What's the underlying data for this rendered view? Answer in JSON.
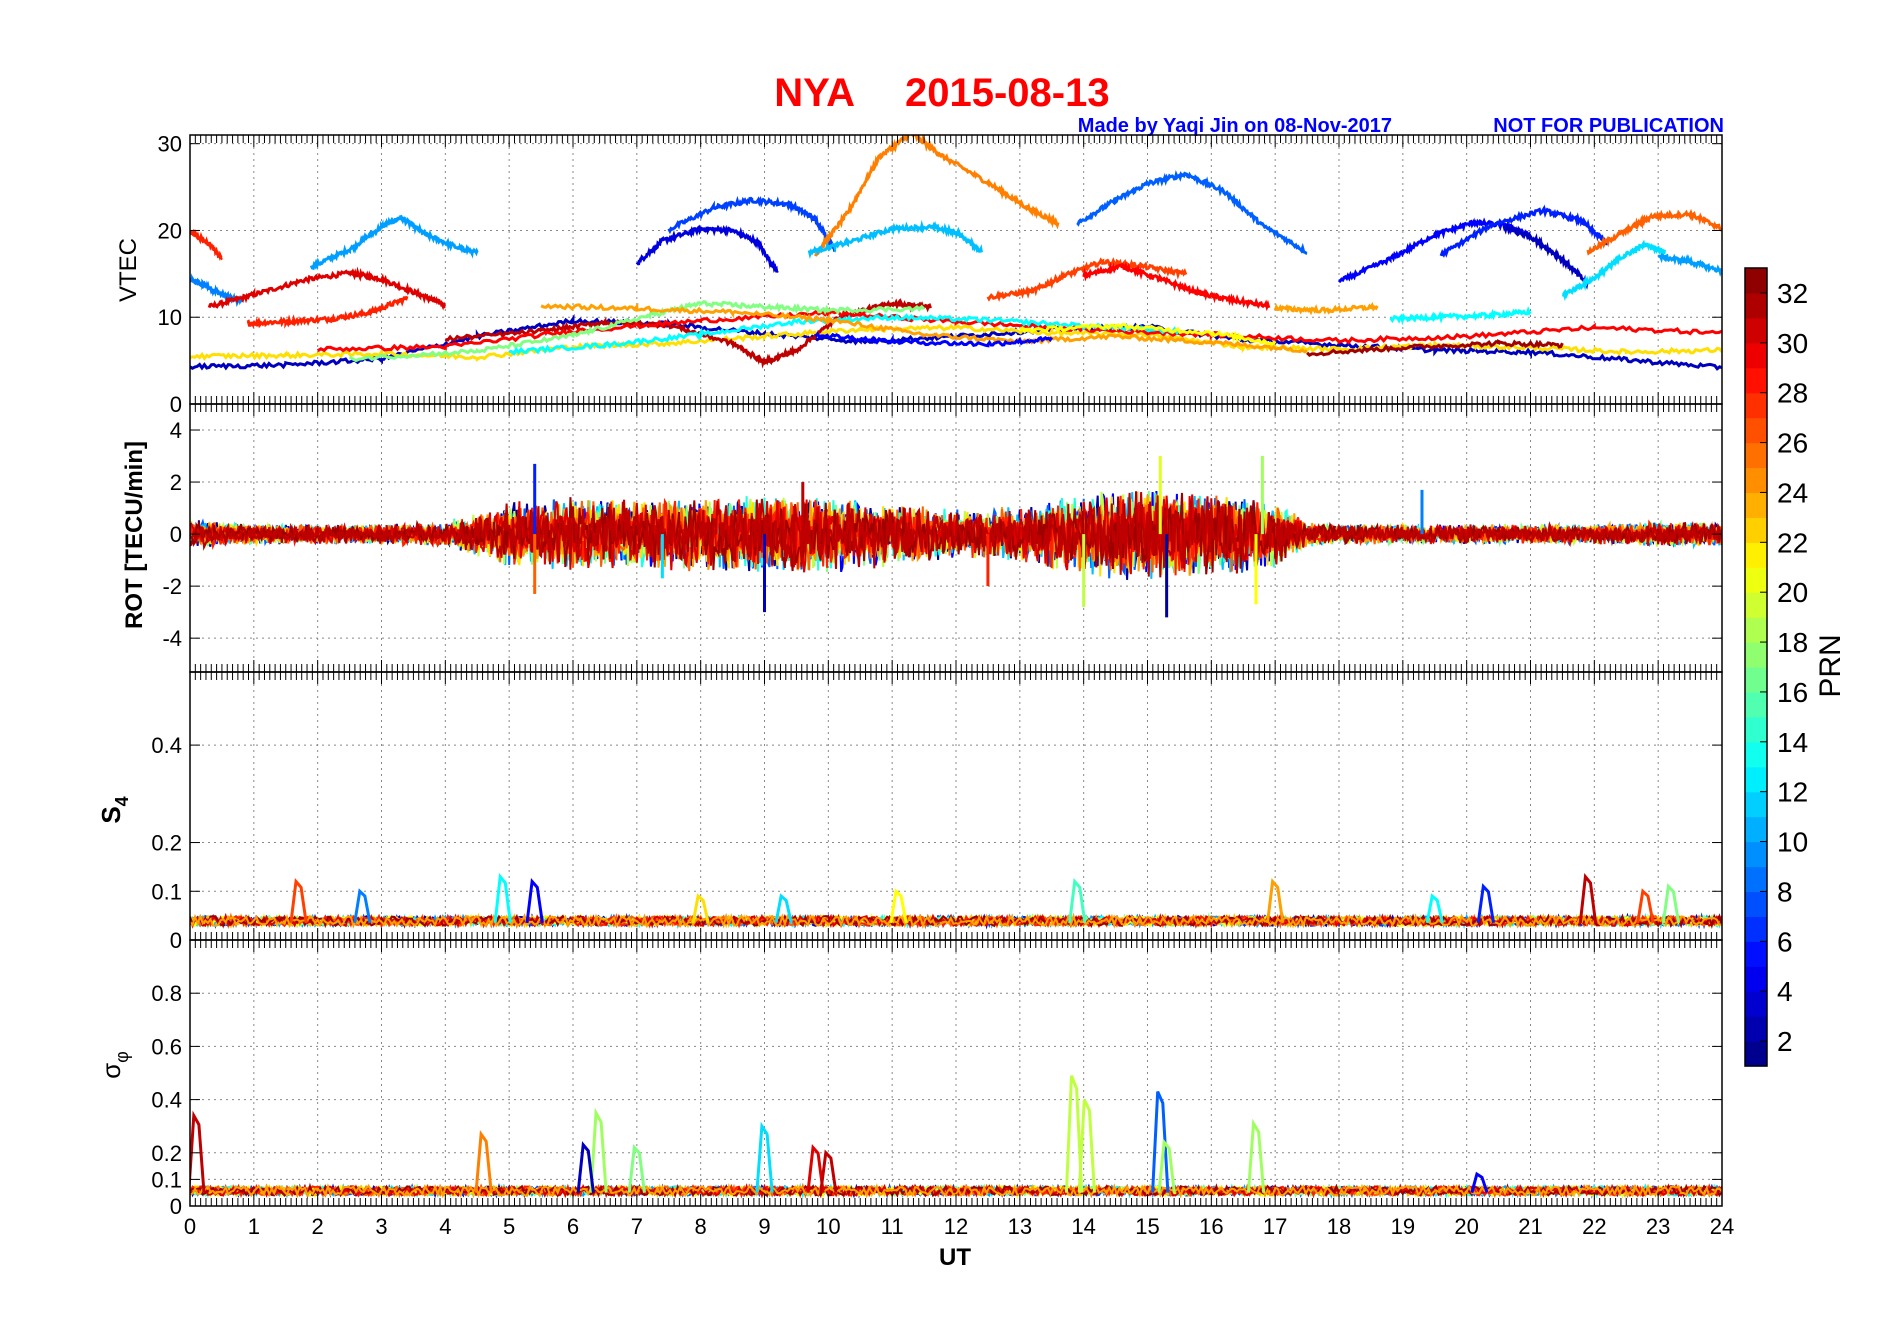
{
  "header": {
    "station": "NYA",
    "date": "2015-08-13",
    "credit": "Made by Yaqi Jin on 08-Nov-2017",
    "notice": "NOT FOR PUBLICATION",
    "title_color": "#ff0000",
    "credit_color": "#0000ff"
  },
  "chart_data": [
    {
      "type": "line",
      "panel": "vtec",
      "ylabel": "VTEC",
      "ylim": [
        0,
        31
      ],
      "yticks": [
        0,
        10,
        20,
        30
      ],
      "xlim": [
        0,
        24
      ],
      "grid": true,
      "note": "multiple satellite traces colored by PRN",
      "series": [
        {
          "prn": 9,
          "x": [
            0.0,
            0.2,
            0.5,
            0.8
          ],
          "y": [
            14.3,
            13.8,
            12.6,
            11.8
          ]
        },
        {
          "prn": 28,
          "x": [
            0.0,
            0.3,
            0.5
          ],
          "y": [
            19.8,
            18.5,
            16.8
          ]
        },
        {
          "prn": 30,
          "x": [
            0.3,
            1.0,
            1.8,
            2.5,
            3.0,
            3.6,
            4.0
          ],
          "y": [
            11.2,
            12.6,
            14.3,
            15.1,
            14.4,
            12.6,
            11.4
          ]
        },
        {
          "prn": 10,
          "x": [
            1.9,
            2.5,
            3.0,
            3.3,
            3.7,
            4.2,
            4.5
          ],
          "y": [
            15.8,
            17.8,
            20.4,
            21.5,
            19.5,
            18.0,
            17.4
          ]
        },
        {
          "prn": 28,
          "x": [
            0.9,
            1.5,
            2.2,
            2.8,
            3.4
          ],
          "y": [
            9.3,
            9.5,
            9.8,
            10.5,
            12.2
          ]
        },
        {
          "prn": 4,
          "x": [
            7.0,
            7.4,
            8.0,
            8.5,
            8.9,
            9.2
          ],
          "y": [
            16.2,
            18.8,
            20.2,
            20.0,
            18.6,
            15.2
          ]
        },
        {
          "prn": 7,
          "x": [
            7.5,
            8.2,
            8.8,
            9.4,
            9.8,
            10.1
          ],
          "y": [
            20.1,
            22.6,
            23.5,
            23.0,
            21.3,
            17.8
          ]
        },
        {
          "prn": 25,
          "x": [
            9.8,
            10.3,
            10.8,
            11.3,
            11.8,
            12.5,
            13.1,
            13.6
          ],
          "y": [
            17.2,
            22.0,
            28.5,
            31.2,
            28.5,
            25.5,
            22.7,
            20.8
          ]
        },
        {
          "prn": 11,
          "x": [
            9.7,
            10.3,
            11.0,
            11.6,
            12.0,
            12.4
          ],
          "y": [
            17.5,
            18.6,
            20.2,
            20.4,
            19.8,
            17.6
          ]
        },
        {
          "prn": 8,
          "x": [
            13.9,
            14.5,
            15.0,
            15.6,
            16.2,
            16.8,
            17.5
          ],
          "y": [
            20.8,
            23.5,
            25.4,
            26.5,
            24.5,
            20.6,
            17.5
          ]
        },
        {
          "prn": 27,
          "x": [
            12.5,
            13.2,
            13.7,
            14.3,
            14.9,
            15.6
          ],
          "y": [
            12.3,
            13.0,
            14.8,
            16.4,
            15.9,
            15.0
          ]
        },
        {
          "prn": 29,
          "x": [
            14.0,
            14.6,
            15.2,
            15.8,
            16.3,
            16.9
          ],
          "y": [
            14.8,
            15.9,
            14.4,
            12.8,
            12.0,
            11.3
          ]
        },
        {
          "prn": 5,
          "x": [
            18.0,
            18.8,
            19.5,
            20.1,
            20.6,
            21.0
          ],
          "y": [
            14.1,
            16.7,
            19.5,
            20.9,
            20.6,
            19.4
          ]
        },
        {
          "prn": 6,
          "x": [
            19.6,
            20.4,
            21.2,
            21.8,
            22.2
          ],
          "y": [
            17.2,
            20.7,
            22.3,
            21.1,
            18.5
          ]
        },
        {
          "prn": 3,
          "x": [
            20.6,
            21.0,
            21.5,
            21.9
          ],
          "y": [
            20.3,
            19.3,
            16.7,
            13.8
          ]
        },
        {
          "prn": 12,
          "x": [
            21.5,
            22.0,
            22.4,
            22.8,
            23.1
          ],
          "y": [
            12.5,
            14.5,
            16.8,
            18.4,
            17.6
          ]
        },
        {
          "prn": 26,
          "x": [
            21.9,
            22.4,
            22.9,
            23.5,
            24.0
          ],
          "y": [
            17.5,
            19.6,
            21.6,
            21.9,
            20.2
          ]
        },
        {
          "prn": 10,
          "x": [
            23.0,
            23.5,
            24.0
          ],
          "y": [
            17.0,
            16.4,
            15.3
          ]
        },
        {
          "prn": 24,
          "x": [
            17.0,
            17.8,
            18.6
          ],
          "y": [
            11.0,
            10.8,
            11.2
          ]
        },
        {
          "prn": 13,
          "x": [
            18.8,
            19.5,
            20.3,
            21.0
          ],
          "y": [
            9.8,
            10.0,
            10.2,
            10.6
          ]
        },
        {
          "prn": 3,
          "x": [
            0.0,
            1.5,
            3.0,
            4.5,
            6.0,
            7.5,
            9.0,
            10.5,
            12.0,
            13.5,
            15.0,
            16.5,
            18.0,
            19.5,
            21.0,
            22.5,
            24.0
          ],
          "y": [
            4.3,
            4.5,
            5.2,
            7.8,
            9.6,
            9.2,
            8.1,
            7.2,
            7.8,
            8.6,
            8.9,
            7.4,
            6.8,
            6.2,
            6.0,
            5.1,
            4.2
          ]
        },
        {
          "prn": 22,
          "x": [
            0.0,
            1.5,
            3.0,
            4.5,
            6.0,
            7.5,
            9.0,
            10.5,
            12.0,
            13.5,
            15.0,
            16.5,
            18.0,
            19.5,
            21.0,
            22.5,
            24.0
          ],
          "y": [
            5.5,
            5.6,
            5.8,
            5.4,
            6.6,
            7.0,
            7.8,
            8.6,
            8.8,
            8.2,
            8.0,
            6.6,
            6.3,
            6.8,
            6.5,
            6.0,
            6.2
          ]
        },
        {
          "prn": 31,
          "x": [
            4.0,
            5.5,
            6.5,
            7.5,
            8.5,
            9.0,
            9.5,
            10.2,
            11.0,
            11.6
          ],
          "y": [
            7.5,
            8.4,
            9.4,
            9.1,
            7.0,
            4.8,
            6.2,
            10.2,
            11.6,
            11.2
          ]
        },
        {
          "prn": 29,
          "x": [
            2.0,
            4.0,
            6.0,
            8.0,
            10.0,
            12.0,
            14.0,
            16.0,
            18.0,
            20.0,
            22.0,
            24.0
          ],
          "y": [
            6.3,
            6.6,
            8.4,
            9.6,
            10.5,
            9.5,
            8.6,
            8.0,
            7.3,
            7.8,
            8.8,
            8.2
          ]
        },
        {
          "prn": 17,
          "x": [
            2.5,
            4.5,
            6.0,
            7.2,
            8.0,
            9.0,
            10.0,
            11.5
          ],
          "y": [
            5.2,
            6.1,
            7.9,
            10.2,
            11.6,
            11.2,
            10.8,
            11.0
          ]
        },
        {
          "prn": 13,
          "x": [
            5.0,
            6.5,
            8.0,
            9.5,
            11.0,
            12.5,
            14.0,
            15.5
          ],
          "y": [
            6.0,
            6.8,
            8.0,
            9.5,
            10.0,
            9.7,
            9.0,
            8.4
          ]
        },
        {
          "prn": 24,
          "x": [
            5.5,
            7.0,
            8.5,
            10.0,
            11.5,
            13.0,
            14.5,
            16.0,
            17.5
          ],
          "y": [
            11.3,
            11.0,
            10.6,
            9.7,
            8.0,
            7.2,
            7.8,
            7.1,
            6.2
          ]
        },
        {
          "prn": 32,
          "x": [
            17.5,
            19.0,
            20.5,
            21.5
          ],
          "y": [
            5.8,
            6.5,
            7.0,
            6.8
          ]
        },
        {
          "prn": 21,
          "x": [
            13.0,
            14.5,
            16.0,
            17.0
          ],
          "y": [
            8.5,
            9.0,
            8.2,
            7.0
          ]
        },
        {
          "prn": 5,
          "x": [
            9.8,
            11.0,
            12.5,
            13.5
          ],
          "y": [
            8.0,
            7.2,
            6.9,
            7.5
          ]
        }
      ]
    },
    {
      "type": "line",
      "panel": "rot",
      "ylabel": "ROT [TECU/min]",
      "ylim": [
        -5.3,
        5
      ],
      "yticks": [
        -4,
        -2,
        0,
        2,
        4
      ],
      "xlim": [
        0,
        24
      ],
      "grid": true,
      "note": "rate of TEC fluctuations per PRN; amplitude envelope in TECU/min",
      "envelope": {
        "x": [
          0,
          1,
          2,
          3,
          4,
          4.5,
          5,
          6,
          7,
          8,
          9,
          10,
          11,
          12,
          13,
          14,
          15,
          16,
          17,
          17.5,
          18,
          19,
          20,
          21,
          22,
          23,
          24
        ],
        "amp": [
          0.6,
          0.4,
          0.4,
          0.4,
          0.5,
          0.9,
          1.3,
          1.5,
          1.4,
          1.5,
          1.6,
          1.5,
          1.3,
          1.0,
          1.1,
          1.7,
          1.9,
          1.7,
          1.4,
          0.5,
          0.4,
          0.4,
          0.4,
          0.4,
          0.4,
          0.5,
          0.5
        ]
      },
      "spikes": [
        {
          "x": 5.4,
          "y": 2.7
        },
        {
          "x": 5.4,
          "y": -2.3
        },
        {
          "x": 9.0,
          "y": -3.0
        },
        {
          "x": 9.6,
          "y": 2.0
        },
        {
          "x": 12.5,
          "y": -2.0
        },
        {
          "x": 14.0,
          "y": -2.8
        },
        {
          "x": 15.2,
          "y": 3.0
        },
        {
          "x": 15.3,
          "y": -3.2
        },
        {
          "x": 16.8,
          "y": 3.0
        },
        {
          "x": 16.7,
          "y": -2.7
        },
        {
          "x": 19.3,
          "y": 1.7
        },
        {
          "x": 7.4,
          "y": -1.7
        }
      ]
    },
    {
      "type": "line",
      "panel": "s4",
      "ylabel": "S4",
      "ylim": [
        0,
        0.55
      ],
      "yticks": [
        0,
        0.1,
        0.2,
        0.4
      ],
      "xlim": [
        0,
        24
      ],
      "grid": true,
      "note": "S4 amplitude scintillation index per PRN; baseline about 0.03-0.05",
      "peaks": [
        {
          "x": 1.7,
          "y": 0.12,
          "prn": 27
        },
        {
          "x": 2.7,
          "y": 0.1,
          "prn": 9
        },
        {
          "x": 4.9,
          "y": 0.13,
          "prn": 13
        },
        {
          "x": 5.4,
          "y": 0.12,
          "prn": 5
        },
        {
          "x": 8.0,
          "y": 0.09,
          "prn": 22
        },
        {
          "x": 9.3,
          "y": 0.09,
          "prn": 12
        },
        {
          "x": 11.1,
          "y": 0.1,
          "prn": 21
        },
        {
          "x": 13.9,
          "y": 0.12,
          "prn": 15
        },
        {
          "x": 17.0,
          "y": 0.12,
          "prn": 24
        },
        {
          "x": 19.5,
          "y": 0.09,
          "prn": 13
        },
        {
          "x": 20.3,
          "y": 0.11,
          "prn": 6
        },
        {
          "x": 21.9,
          "y": 0.13,
          "prn": 31
        },
        {
          "x": 22.8,
          "y": 0.1,
          "prn": 27
        },
        {
          "x": 23.2,
          "y": 0.11,
          "prn": 17
        }
      ]
    },
    {
      "type": "line",
      "panel": "sigma_phi",
      "ylabel": "σφ",
      "ylim": [
        0,
        1.0
      ],
      "yticks": [
        0,
        0.1,
        0.2,
        0.4,
        0.6,
        0.8
      ],
      "xlim": [
        0,
        24
      ],
      "xticks": [
        0,
        1,
        2,
        3,
        4,
        5,
        6,
        7,
        8,
        9,
        10,
        11,
        12,
        13,
        14,
        15,
        16,
        17,
        18,
        19,
        20,
        21,
        22,
        23,
        24
      ],
      "xlabel": "UT",
      "grid": true,
      "note": "phase scintillation index per PRN; baseline about 0.03-0.08",
      "peaks": [
        {
          "x": 0.1,
          "y": 0.34,
          "prn": 31
        },
        {
          "x": 4.6,
          "y": 0.27,
          "prn": 25
        },
        {
          "x": 6.4,
          "y": 0.35,
          "prn": 18
        },
        {
          "x": 6.2,
          "y": 0.23,
          "prn": 3
        },
        {
          "x": 7.0,
          "y": 0.22,
          "prn": 17
        },
        {
          "x": 9.0,
          "y": 0.3,
          "prn": 12
        },
        {
          "x": 9.8,
          "y": 0.22,
          "prn": 30
        },
        {
          "x": 10.0,
          "y": 0.2,
          "prn": 31
        },
        {
          "x": 13.85,
          "y": 0.49,
          "prn": 19
        },
        {
          "x": 14.05,
          "y": 0.4,
          "prn": 19
        },
        {
          "x": 15.2,
          "y": 0.43,
          "prn": 8
        },
        {
          "x": 15.3,
          "y": 0.24,
          "prn": 18
        },
        {
          "x": 16.7,
          "y": 0.31,
          "prn": 18
        },
        {
          "x": 20.2,
          "y": 0.12,
          "prn": 5
        }
      ]
    }
  ],
  "colorbar": {
    "label": "PRN",
    "min": 1,
    "max": 33,
    "ticks": [
      2,
      4,
      6,
      8,
      10,
      12,
      14,
      16,
      18,
      20,
      22,
      24,
      26,
      28,
      30,
      32
    ],
    "colormap": "jet"
  }
}
